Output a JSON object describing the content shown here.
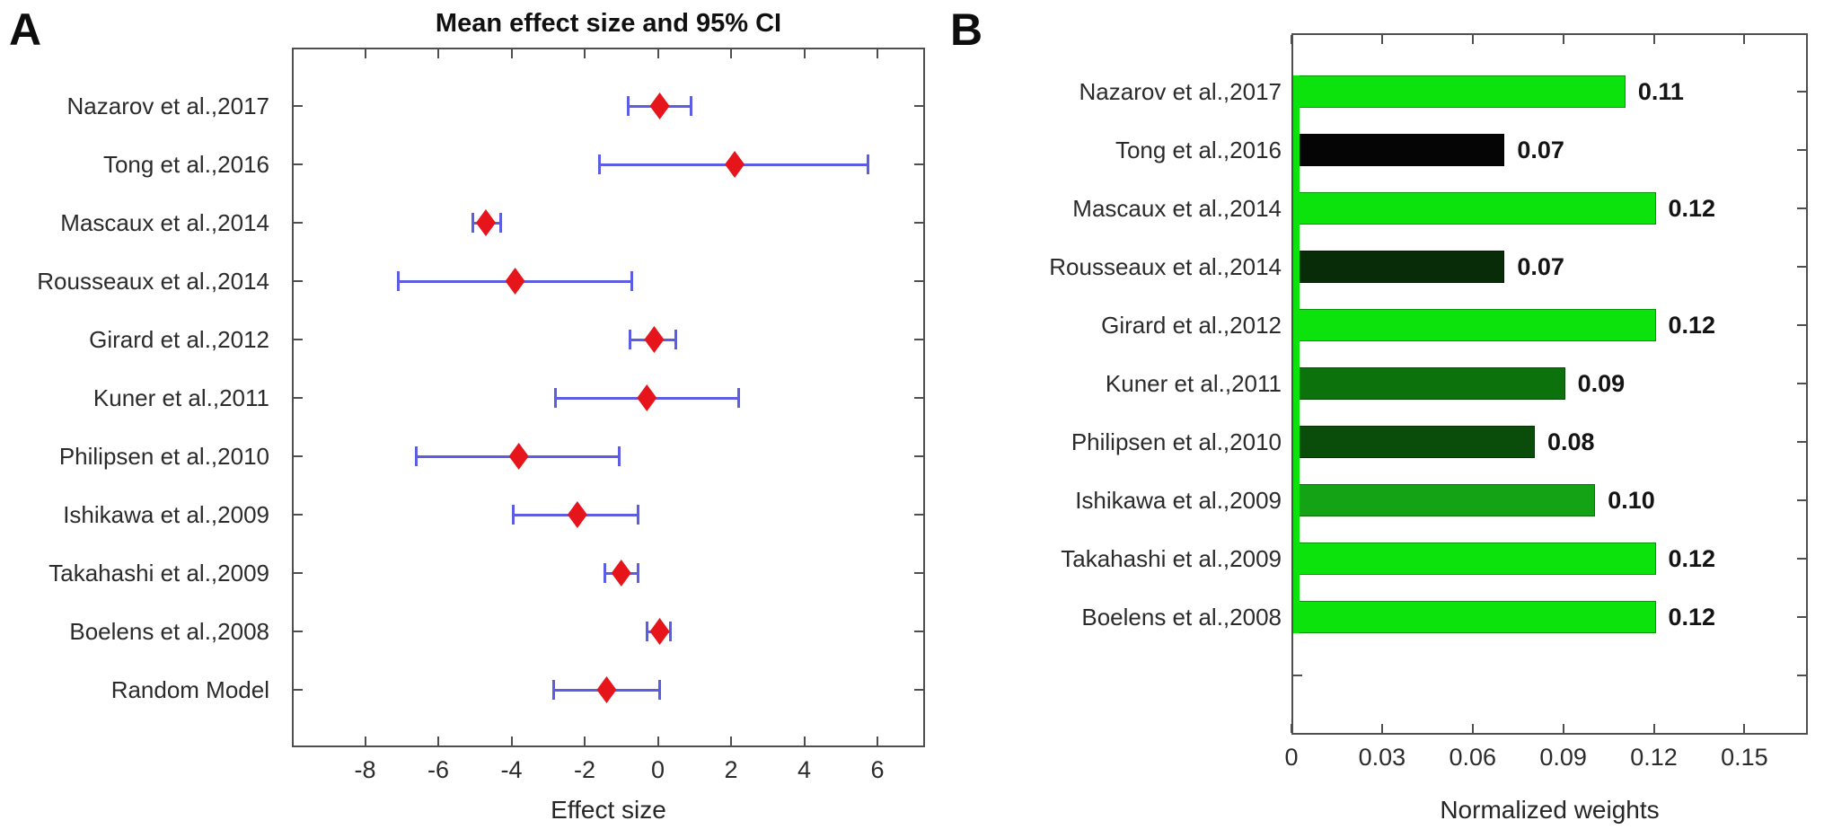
{
  "figure": {
    "panel_a_letter": "A",
    "panel_b_letter": "B"
  },
  "colors": {
    "axis": "#4f4f4f",
    "errorbar_blue": "#5d5de4",
    "diamond_red": "#e6151c",
    "bright_green": "#0ce30c",
    "text_dark": "#2b2b2b"
  },
  "chart_data": [
    {
      "type": "scatter",
      "subtype": "forest-plot",
      "panel": "A",
      "title": "Mean effect size and 95% CI",
      "xlabel": "Effect size",
      "xlim": [
        -10,
        7.3
      ],
      "xticks": [
        -8,
        -6,
        -4,
        -2,
        0,
        2,
        4,
        6
      ],
      "xtick_labels": [
        "-8",
        "-6",
        "-4",
        "-2",
        "0",
        "2",
        "4",
        "6"
      ],
      "grid": false,
      "marker": "diamond",
      "marker_color": "#e6151c",
      "errorbar_color": "#5d5de4",
      "studies": [
        "Nazarov et al.,2017",
        "Tong et al.,2016",
        "Mascaux et al.,2014",
        "Rousseaux et al.,2014",
        "Girard et al.,2012",
        "Kuner et al.,2011",
        "Philipsen et al.,2010",
        "Ishikawa et al.,2009",
        "Takahashi et al.,2009",
        "Boelens et al.,2008",
        "Random Model"
      ],
      "means": [
        0.05,
        2.1,
        -4.7,
        -3.9,
        -0.1,
        -0.3,
        -3.8,
        -2.2,
        -1.0,
        0.05,
        -1.4
      ],
      "ci_low": [
        -0.8,
        -1.6,
        -5.05,
        -7.1,
        -0.75,
        -2.8,
        -6.6,
        -3.95,
        -1.45,
        -0.3,
        -2.85
      ],
      "ci_high": [
        0.9,
        5.75,
        -4.3,
        -0.7,
        0.5,
        2.2,
        -1.05,
        -0.55,
        -0.55,
        0.35,
        0.05
      ]
    },
    {
      "type": "bar",
      "orientation": "horizontal",
      "panel": "B",
      "title": "",
      "xlabel": "Normalized weights",
      "xlim": [
        0,
        0.171
      ],
      "xticks": [
        0,
        0.03,
        0.06,
        0.09,
        0.12,
        0.15
      ],
      "xtick_labels": [
        "0",
        "0.03",
        "0.06",
        "0.09",
        "0.12",
        "0.15"
      ],
      "grid": false,
      "row_slots": 11,
      "categories": [
        "Nazarov et al.,2017",
        "Tong et al.,2016",
        "Mascaux et al.,2014",
        "Rousseaux et al.,2014",
        "Girard et al.,2012",
        "Kuner et al.,2011",
        "Philipsen et al.,2010",
        "Ishikawa et al.,2009",
        "Takahashi et al.,2009",
        "Boelens et al.,2008"
      ],
      "values": [
        0.11,
        0.07,
        0.12,
        0.07,
        0.12,
        0.09,
        0.08,
        0.1,
        0.12,
        0.12
      ],
      "value_labels": [
        "0.11",
        "0.07",
        "0.12",
        "0.07",
        "0.12",
        "0.09",
        "0.08",
        "0.10",
        "0.12",
        "0.12"
      ],
      "bar_colors": [
        "#0ce30c",
        "#050505",
        "#0ce30c",
        "#082c08",
        "#0ce30c",
        "#0c720c",
        "#0a4d0a",
        "#14a314",
        "#0ce30c",
        "#0ce30c"
      ],
      "baseline_stripe_color": "#0ce30c"
    }
  ]
}
